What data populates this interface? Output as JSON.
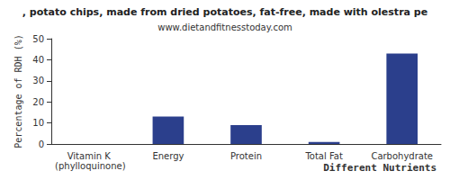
{
  "chart_data": {
    "type": "bar",
    "title": ", potato chips, made from dried potatoes, fat-free, made with olestra pe",
    "subtitle": "www.dietandfitnesstoday.com",
    "x_label": "Different Nutrients",
    "y_label": "Percentage of RDH (%)",
    "categories": [
      "Vitamin K (phylloquinone)",
      "Energy",
      "Protein",
      "Total Fat",
      "Carbohydrate"
    ],
    "values": [
      0,
      13,
      9,
      1,
      43
    ],
    "color": "#2b3f8c",
    "ylim": [
      0,
      50
    ],
    "yticks": [
      0,
      10,
      20,
      30,
      40,
      50
    ],
    "grid": false
  }
}
